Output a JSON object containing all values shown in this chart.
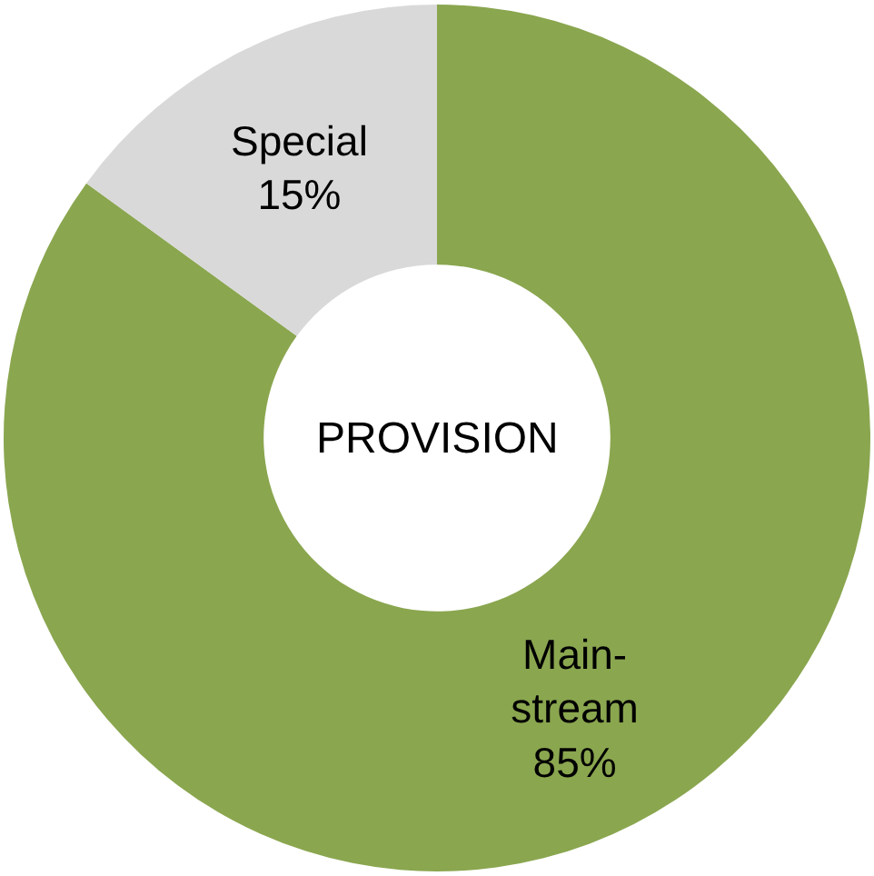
{
  "chart_data": {
    "type": "donut",
    "title": "PROVISION",
    "categories": [
      "Main-\nstream",
      "Special"
    ],
    "values": [
      85,
      15
    ],
    "value_labels": [
      "85%",
      "15%"
    ],
    "colors": [
      "#8aa64f",
      "#d9d9d9"
    ],
    "legend": false
  }
}
